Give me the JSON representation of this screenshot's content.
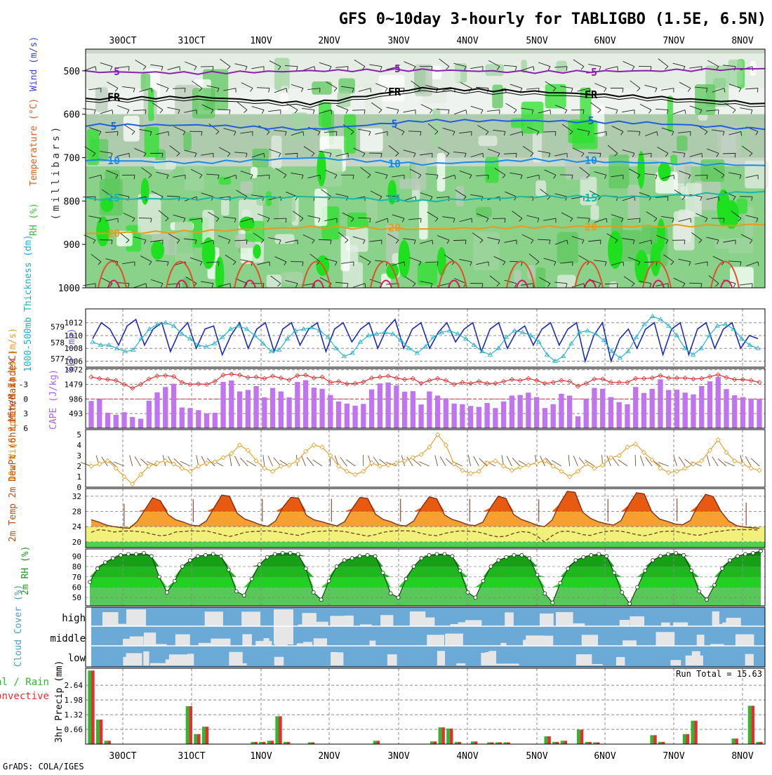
{
  "title": "GFS 0~10day 3-hourly for TABLIGBO (1.5E, 6.5N)",
  "footer": "GrADS: COLA/IGES",
  "date_labels": [
    "30OCT",
    "31OCT",
    "1NOV",
    "2NOV",
    "3NOV",
    "4NOV",
    "5NOV",
    "6NOV",
    "7NOV",
    "8NOV"
  ],
  "chart_data": [
    {
      "type": "heatmap",
      "id": "pressure-panel",
      "ylabel": "(millibars)",
      "ylabel_parts": [
        "RH (%)",
        "Temperature (°C)",
        "Wind (m/s)"
      ],
      "y_ticks": [
        500,
        600,
        700,
        800,
        900,
        1000
      ],
      "ylim": [
        1000,
        450
      ],
      "temperature_contours": [
        {
          "label": "-5",
          "pressure": [
            502,
            505,
            500,
            498,
            503,
            500,
            495
          ],
          "color": "#8b1fb0"
        },
        {
          "label": "FR",
          "pressure": [
            565,
            560,
            575,
            540,
            548,
            560,
            575
          ],
          "color": "#000000"
        },
        {
          "label": "5",
          "pressure": [
            625,
            625,
            635,
            615,
            615,
            620,
            635
          ],
          "color": "#1f5fe0"
        },
        {
          "label": "10",
          "pressure": [
            705,
            712,
            700,
            715,
            705,
            712,
            718
          ],
          "color": "#1a8ce6"
        },
        {
          "label": "15",
          "pressure": [
            795,
            795,
            790,
            800,
            790,
            790,
            778
          ],
          "color": "#1ab7a5"
        },
        {
          "label": "20",
          "pressure": [
            875,
            870,
            860,
            865,
            860,
            858,
            855
          ],
          "color": "#e69b1f"
        }
      ],
      "rh_legend": [
        "green shades = RH (%)"
      ]
    },
    {
      "type": "line",
      "id": "slp-thickness",
      "ylabel_left": "1000-500mb Thickness (dm)",
      "ylabel_right": "SLP (mb)",
      "left_ticks": [
        577,
        578,
        579
      ],
      "right_ticks": [
        1006,
        1008,
        1010,
        1012
      ],
      "series": [
        {
          "name": "SLP (mb)",
          "color": "#1b2db8",
          "values": [
            1009.5,
            1012,
            1011,
            1008.5,
            1011.5,
            1012.5,
            1008.5,
            1011,
            1012,
            1007.5,
            1010.5,
            1012,
            1008,
            1011,
            1011.5,
            1007,
            1010,
            1012,
            1008,
            1011,
            1012,
            1007.5,
            1011,
            1012,
            1008.5,
            1011,
            1012,
            1007.5,
            1011,
            1012,
            1009,
            1011,
            1012,
            1008,
            1011,
            1012.5,
            1008,
            1011,
            1012,
            1008,
            1010.5,
            1012,
            1009,
            1011,
            1012,
            1007.5,
            1011,
            1012,
            1008,
            1010.5,
            1011.5,
            1008.5,
            1011,
            1012,
            1008.5,
            1011,
            1012,
            1006,
            1010,
            1012,
            1006,
            1009.5,
            1011,
            1008,
            1011,
            1012,
            1007,
            1011,
            1012,
            1007,
            1011,
            1012,
            1008,
            1011,
            1012,
            1008,
            1010,
            1009.5
          ]
        },
        {
          "name": "1000-500mb Thickness (dm)",
          "color": "#1ab0c9",
          "values": [
            578.0,
            577.8,
            577.8,
            577.6,
            577.4,
            577.5,
            578.2,
            578.8,
            579.1,
            579.2,
            579.0,
            578.5,
            578.2,
            577.8,
            577.7,
            577.9,
            578.3,
            578.8,
            579.0,
            578.8,
            578.4,
            577.9,
            577.4,
            577.5,
            578.2,
            578.7,
            578.8,
            578.9,
            578.7,
            578.3,
            577.6,
            577.1,
            577.3,
            578.0,
            578.4,
            578.5,
            578.6,
            578.5,
            578.1,
            577.6,
            577.3,
            577.7,
            578.3,
            578.6,
            578.7,
            578.5,
            578.2,
            577.8,
            577.4,
            577.2,
            577.6,
            578.3,
            578.7,
            578.6,
            578.4,
            578.0,
            577.2,
            576.8,
            577.1,
            577.9,
            578.6,
            578.7,
            578.5,
            578.1,
            577.4,
            577.0,
            577.4,
            578.3,
            579.1,
            579.6,
            579.4,
            579.0,
            578.4,
            577.6,
            577.2,
            577.6,
            578.4,
            579.0,
            579.1,
            578.8,
            578.2,
            577.8,
            577.6
          ]
        }
      ]
    },
    {
      "type": "bar",
      "id": "cape-lifted",
      "ylabel_left": "Lifted Index",
      "ylabel_right": "CAPE (J/kg)",
      "left_ticks": [
        -3,
        0,
        3,
        6
      ],
      "right_ticks": [
        493,
        986,
        1479,
        1972
      ],
      "series": [
        {
          "name": "CAPE (J/kg)",
          "color": "#c074f0",
          "values": [
            920,
            980,
            520,
            450,
            540,
            380,
            320,
            930,
            1210,
            1390,
            1500,
            700,
            680,
            610,
            500,
            520,
            1560,
            1610,
            1240,
            1290,
            1420,
            1040,
            1360,
            1240,
            1040,
            1560,
            1620,
            1370,
            1330,
            1120,
            900,
            830,
            760,
            820,
            1310,
            1510,
            1540,
            1440,
            1230,
            1250,
            800,
            1240,
            1100,
            1010,
            830,
            810,
            750,
            720,
            850,
            680,
            900,
            1100,
            1120,
            1200,
            1050,
            680,
            810,
            1160,
            1100,
            400,
            1000,
            1360,
            1330,
            1050,
            880,
            810,
            1390,
            1190,
            1330,
            1650,
            1290,
            1300,
            1200,
            1140,
            1420,
            1580,
            1730,
            1320,
            1110,
            1050,
            1000,
            990
          ]
        },
        {
          "name": "Lifted Index",
          "color": "#e03030",
          "values": [
            -4.5,
            -4.2,
            -4,
            -3.8,
            -3,
            -2.2,
            -3,
            -4.1,
            -4.7,
            -4.8,
            -4.6,
            -3.4,
            -3,
            -3.1,
            -3,
            -3.6,
            -4.9,
            -5.1,
            -4.9,
            -4.4,
            -4.5,
            -4.2,
            -4.7,
            -4.3,
            -3.9,
            -4.8,
            -4.9,
            -4.3,
            -4.5,
            -3.4,
            -3.6,
            -3.1,
            -3.2,
            -3.5,
            -4.3,
            -4.5,
            -4.7,
            -4.3,
            -4,
            -4.2,
            -3.2,
            -3.8,
            -4.2,
            -3.8,
            -3,
            -3.4,
            -3.2,
            -3.6,
            -3.2,
            -3.2,
            -3.6,
            -4,
            -3.8,
            -4.2,
            -3.8,
            -3.2,
            -3.4,
            -3.8,
            -3.6,
            -2.6,
            -3.2,
            -4.1,
            -4.1,
            -3.4,
            -3.4,
            -3.4,
            -4.2,
            -4.2,
            -4.3,
            -4.8,
            -4.3,
            -4.3,
            -4.3,
            -4.1,
            -4.2,
            -4.6,
            -5.0,
            -4.4,
            -4.0,
            -4.0,
            -3.8,
            -3.4
          ]
        }
      ]
    },
    {
      "type": "line",
      "id": "wind-10m",
      "ylabel": "10m Wind Speed & Barbs (m/s)",
      "y_ticks": [
        0,
        1,
        2,
        3,
        4,
        5
      ],
      "series": [
        {
          "name": "10m Wind Speed",
          "color": "#e69b1f",
          "values": [
            2.0,
            2.2,
            2.5,
            1.8,
            1.0,
            0.3,
            1.2,
            2.0,
            2.3,
            2.5,
            2.2,
            1.8,
            1.5,
            2.0,
            2.3,
            2.4,
            2.8,
            3.2,
            4.0,
            3.5,
            2.5,
            1.8,
            1.5,
            2.0,
            2.1,
            2.5,
            3.4,
            4.0,
            3.8,
            3.0,
            2.0,
            1.5,
            1.2,
            1.5,
            2.3,
            2.0,
            2.1,
            2.3,
            2.5,
            2.8,
            3.1,
            3.8,
            5.0,
            4.0,
            2.2,
            1.6,
            1.3,
            1.5,
            2.3,
            2.5,
            2.0,
            1.6,
            1.9,
            2.1,
            2.3,
            2.5,
            2.0,
            1.5,
            1.0,
            1.5,
            2.2,
            1.8,
            2.1,
            2.8,
            3.0,
            3.8,
            4.1,
            3.3,
            2.6,
            1.8,
            1.4,
            1.5,
            1.8,
            2.2,
            2.5,
            3.5,
            4.5,
            3.3,
            2.5,
            2.2,
            1.8,
            1.6
          ]
        }
      ]
    },
    {
      "type": "area",
      "id": "temp-2m",
      "ylabel": "2m Temp 2m DewPt (6hr Min/Max) (°C)",
      "y_ticks": [
        20,
        24,
        28,
        32
      ],
      "series": [
        {
          "name": "2m Temp",
          "color": "#e05a10",
          "values": [
            25.8,
            25.2,
            24.4,
            24.0,
            23.7,
            23.6,
            25.4,
            28.5,
            31.6,
            30.8,
            27.2,
            25.8,
            25.2,
            24.4,
            24.2,
            25.5,
            29.0,
            32.3,
            32.0,
            27.5,
            26.0,
            25.3,
            24.5,
            24.1,
            25.5,
            29.2,
            31.7,
            31.5,
            27.0,
            25.8,
            25.3,
            24.7,
            24.2,
            25.3,
            28.8,
            31.7,
            31.4,
            27.3,
            25.9,
            25.3,
            24.4,
            24.2,
            25.5,
            29.0,
            31.8,
            31.3,
            27.1,
            25.9,
            25.3,
            24.5,
            24.3,
            25.2,
            29.0,
            32.0,
            31.4,
            27.2,
            25.9,
            25.2,
            24.4,
            24.0,
            25.7,
            30.0,
            33.3,
            33.0,
            27.8,
            26.2,
            25.3,
            24.8,
            24.4,
            25.6,
            29.7,
            32.9,
            32.6,
            27.9,
            26.0,
            25.4,
            24.7,
            24.5,
            25.6,
            29.6,
            32.5,
            31.9,
            28.0,
            25.5,
            24.3,
            23.9,
            23.7,
            23.6
          ]
        },
        {
          "name": "2m DewPt",
          "color": "#704020",
          "values": [
            22.5,
            23.2,
            23.0,
            22.6,
            22.8,
            22.9,
            22.7,
            22.5,
            22.0,
            21.6,
            21.8,
            22.6,
            22.7,
            22.9,
            22.8,
            22.9,
            22.4,
            21.9,
            21.4,
            21.9,
            22.5,
            22.7,
            22.8,
            22.9,
            22.7,
            22.4,
            22.0,
            21.7,
            22.3,
            22.7,
            22.8,
            22.9,
            22.9,
            22.7,
            22.3,
            21.9,
            21.5,
            21.9,
            22.5,
            22.8,
            22.9,
            22.9,
            22.8,
            22.2,
            21.8,
            21.6,
            22.2,
            22.6,
            22.9,
            22.8,
            22.7,
            22.3,
            21.7,
            21.3,
            21.5,
            22.2,
            22.7,
            22.5,
            21.6,
            20.0,
            21.6,
            22.7,
            22.8,
            22.5,
            21.9,
            21.7,
            22.3,
            22.7,
            22.9,
            22.8,
            22.4,
            21.9,
            21.6,
            22.0,
            22.6,
            22.8,
            22.8,
            22.4,
            22.0,
            21.7,
            22.1,
            22.6,
            22.8,
            23.1,
            23.2,
            23.2,
            23.2,
            23.1
          ]
        }
      ]
    },
    {
      "type": "area",
      "id": "rh-2m",
      "ylabel": "2m RH (%)",
      "y_ticks": [
        50,
        60,
        70,
        80,
        90
      ],
      "series": [
        {
          "name": "2m RH",
          "color": "#0a8a0a",
          "values": [
            65,
            78,
            84,
            88,
            91,
            92,
            92,
            93,
            90,
            70,
            55,
            66,
            80,
            86,
            90,
            91,
            92,
            90,
            77,
            56,
            52,
            68,
            82,
            89,
            92,
            93,
            93,
            92,
            78,
            55,
            48,
            66,
            80,
            86,
            88,
            90,
            91,
            90,
            74,
            54,
            50,
            68,
            80,
            88,
            91,
            92,
            92,
            90,
            76,
            55,
            50,
            66,
            80,
            86,
            89,
            91,
            91,
            88,
            72,
            54,
            45,
            64,
            78,
            86,
            89,
            91,
            92,
            90,
            74,
            55,
            44,
            60,
            76,
            86,
            90,
            92,
            93,
            91,
            76,
            56,
            48,
            62,
            78,
            86,
            90,
            92,
            93,
            95
          ]
        }
      ]
    },
    {
      "type": "heatmap",
      "id": "cloud-cover",
      "ylabel": "Cloud Cover (%)",
      "rows": [
        "high",
        "middle",
        "low"
      ]
    },
    {
      "type": "bar",
      "id": "precip",
      "ylabel": "3hr Precip (mm)",
      "legend_left": [
        "Total / Rain",
        "Convective"
      ],
      "y_ticks": [
        0.66,
        1.32,
        1.98,
        2.64
      ],
      "annotation": "Run Total = 15.63",
      "series": [
        {
          "name": "Total / Rain",
          "color": "#2eb82e",
          "values": [
            3.3,
            1.1,
            0.15,
            0,
            0,
            0,
            0,
            0,
            0,
            0,
            0,
            0,
            1.7,
            0.45,
            0.78,
            0,
            0,
            0,
            0,
            0,
            0.1,
            0.1,
            0.15,
            1.25,
            0.1,
            0,
            0,
            0.08,
            0,
            0,
            0,
            0,
            0,
            0,
            0,
            0.15,
            0,
            0,
            0,
            0,
            0,
            0,
            0.12,
            0.75,
            0.7,
            0.1,
            0,
            0.12,
            0,
            0.08,
            0.08,
            0.08,
            0,
            0,
            0,
            0,
            0.35,
            0.1,
            0.15,
            0,
            0.65,
            0.1,
            0.08,
            0,
            0,
            0,
            0,
            0,
            0,
            0.4,
            0.1,
            0,
            0,
            0.45,
            1.05,
            0,
            0,
            0,
            0,
            0.25,
            0,
            1.72,
            0.1
          ]
        },
        {
          "name": "Convective",
          "color": "#e03030",
          "values": [
            3.3,
            1.1,
            0.15,
            0,
            0,
            0,
            0,
            0,
            0,
            0,
            0,
            0,
            1.7,
            0.45,
            0.78,
            0,
            0,
            0,
            0,
            0,
            0.1,
            0.1,
            0.15,
            1.25,
            0.1,
            0,
            0,
            0.08,
            0,
            0,
            0,
            0,
            0,
            0,
            0,
            0.15,
            0,
            0,
            0,
            0,
            0,
            0,
            0.12,
            0.75,
            0.7,
            0.1,
            0,
            0.12,
            0,
            0.08,
            0.08,
            0.08,
            0,
            0,
            0,
            0,
            0.35,
            0.1,
            0.15,
            0,
            0.65,
            0.1,
            0.08,
            0,
            0,
            0,
            0,
            0,
            0,
            0.4,
            0.1,
            0,
            0,
            0.45,
            1.05,
            0,
            0,
            0,
            0,
            0.25,
            0,
            1.72,
            0.1
          ]
        }
      ]
    }
  ]
}
